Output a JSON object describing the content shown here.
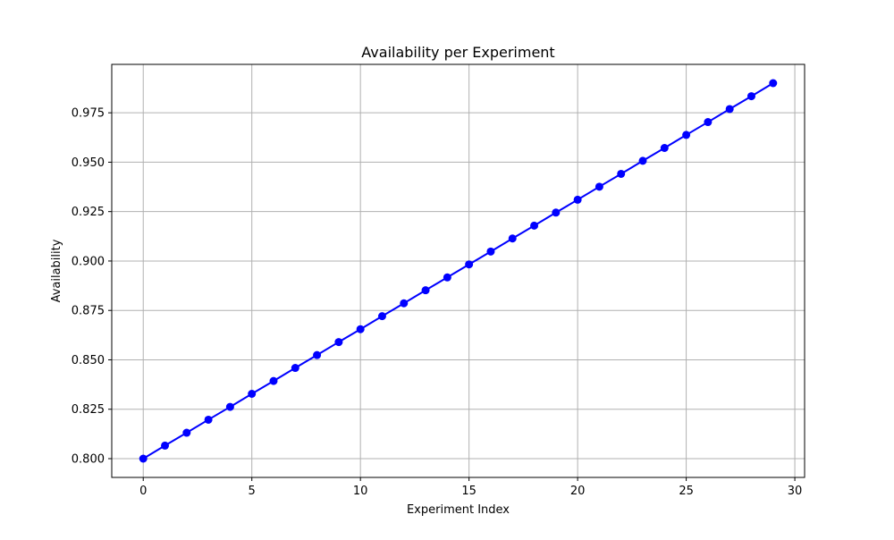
{
  "chart_data": {
    "type": "line",
    "title": "Availability per Experiment",
    "xlabel": "Experiment Index",
    "ylabel": "Availability",
    "xlim": [
      -1.45,
      30.45
    ],
    "ylim": [
      0.7905,
      0.9995
    ],
    "x_ticks": [
      0,
      5,
      10,
      15,
      20,
      25,
      30
    ],
    "x_tick_labels": [
      "0",
      "5",
      "10",
      "15",
      "20",
      "25",
      "30"
    ],
    "y_ticks": [
      0.8,
      0.825,
      0.85,
      0.875,
      0.9,
      0.925,
      0.95,
      0.975
    ],
    "y_tick_labels": [
      "0.800",
      "0.825",
      "0.850",
      "0.875",
      "0.900",
      "0.925",
      "0.950",
      "0.975"
    ],
    "grid": true,
    "series": [
      {
        "color": "#0000ff",
        "marker": "circle",
        "x": [
          0,
          1,
          2,
          3,
          4,
          5,
          6,
          7,
          8,
          9,
          10,
          11,
          12,
          13,
          14,
          15,
          16,
          17,
          18,
          19,
          20,
          21,
          22,
          23,
          24,
          25,
          26,
          27,
          28,
          29
        ],
        "values": [
          0.8,
          0.8066,
          0.8131,
          0.8197,
          0.8262,
          0.8328,
          0.8393,
          0.8459,
          0.8524,
          0.859,
          0.8655,
          0.8721,
          0.8786,
          0.8852,
          0.8917,
          0.8983,
          0.9048,
          0.9114,
          0.9179,
          0.9245,
          0.931,
          0.9376,
          0.9441,
          0.9507,
          0.9572,
          0.9638,
          0.9703,
          0.9769,
          0.9834,
          0.99
        ]
      }
    ]
  }
}
